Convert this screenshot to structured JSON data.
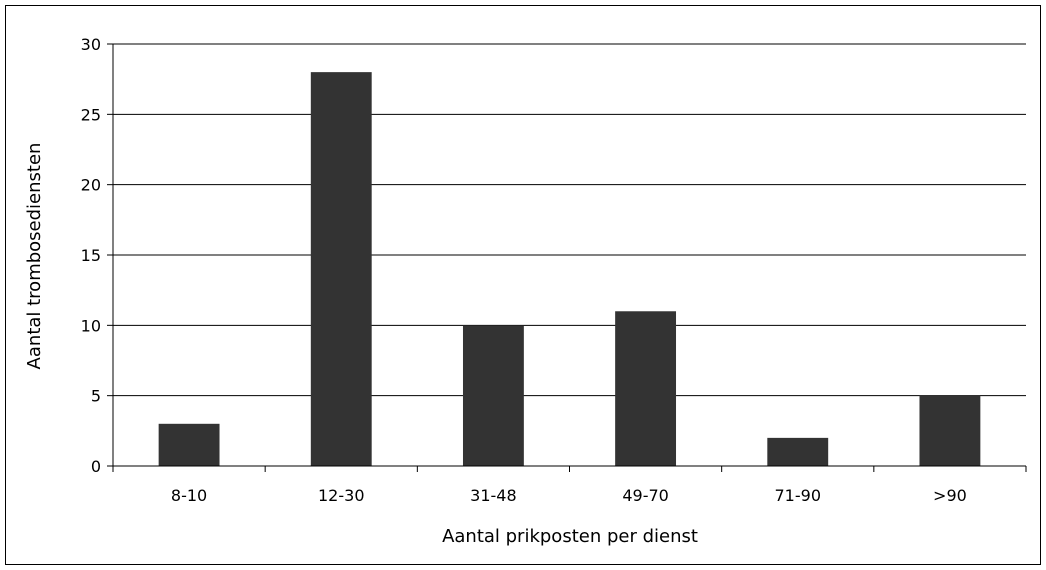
{
  "chart_data": {
    "type": "bar",
    "title": "",
    "xlabel": "Aantal prikposten per dienst",
    "ylabel": "Aantal trombosediensten",
    "categories": [
      "8-10",
      "12-30",
      "31-48",
      "49-70",
      "71-90",
      ">90"
    ],
    "values": [
      3,
      28,
      10,
      11,
      2,
      5
    ],
    "ylim": [
      0,
      30
    ],
    "yticks": [
      0,
      5,
      10,
      15,
      20,
      25,
      30
    ],
    "grid": true,
    "legend": "none",
    "bar_color": "#333333"
  }
}
